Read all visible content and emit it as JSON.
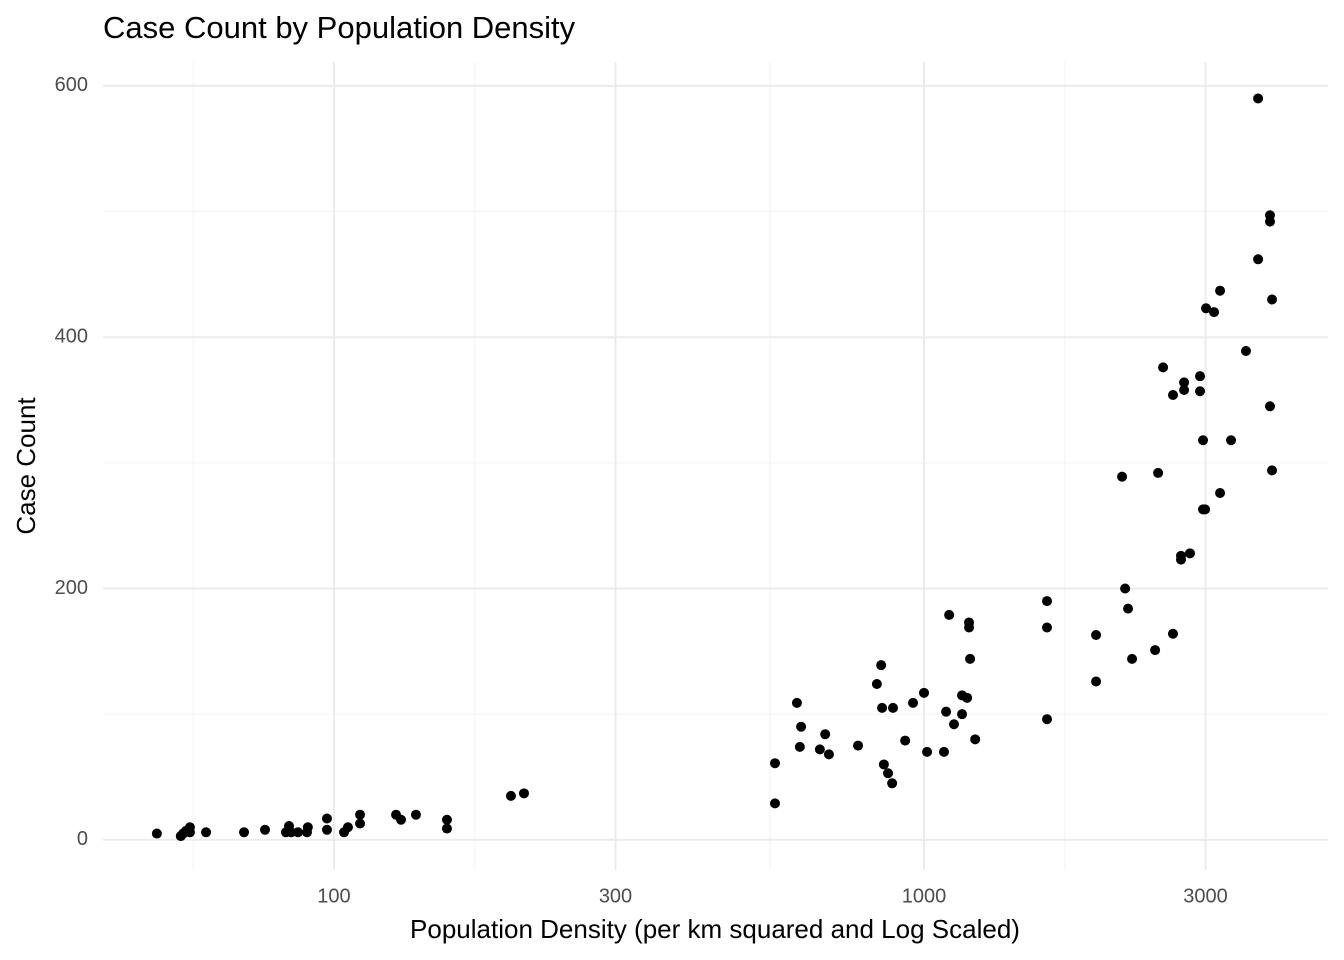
{
  "chart_data": {
    "type": "scatter",
    "title": "Case Count by Population Density",
    "x_label": "Population Density (per km squared and Log Scaled)",
    "y_label": "Case Count",
    "x_log": true,
    "grid": true,
    "color": "#000000",
    "xlim": [
      40.6,
      4838
    ],
    "ylim": [
      -24,
      619
    ],
    "xticks": [
      100,
      300,
      1000,
      3000
    ],
    "yticks": [
      0,
      200,
      400,
      600
    ],
    "x": [
      50.1,
      55.0,
      55.5,
      56.1,
      57.0,
      57.0,
      60.7,
      70.4,
      76.4,
      82.9,
      83.9,
      84.6,
      86.9,
      90.0,
      90.3,
      97.3,
      97.3,
      104,
      105.6,
      110.7,
      110.7,
      127.4,
      129.9,
      137.7,
      155.4,
      155.4,
      199.5,
      209.9,
      559,
      559,
      609,
      616,
      619,
      666,
      680,
      690,
      773,
      832,
      846,
      849,
      855,
      869,
      883,
      886,
      929,
      958,
      1000,
      1012,
      1081,
      1090,
      1103,
      1124,
      1160,
      1160,
      1183,
      1192,
      1192,
      1197,
      1221,
      1616,
      1616,
      1616,
      1957,
      1957,
      2166,
      2192,
      2217,
      2252,
      2464,
      2493,
      2542,
      2642,
      2642,
      2726,
      2726,
      2759,
      2759,
      2823,
      2936,
      2936,
      2971,
      2971,
      2995,
      3006,
      3101,
      3175,
      3175,
      3314,
      3513,
      3683,
      3683,
      3858,
      3858,
      3858,
      3889,
      3889
    ],
    "values": [
      5,
      3,
      5,
      7,
      10,
      6,
      6,
      6,
      8,
      6,
      11,
      6,
      6,
      6,
      10,
      17,
      8,
      6,
      10,
      20,
      13,
      20,
      16,
      20,
      16,
      9,
      35,
      37,
      61,
      29,
      109,
      74,
      90,
      72,
      84,
      68,
      75,
      124,
      139,
      105,
      60,
      53,
      45,
      105,
      79,
      109,
      117,
      70,
      70,
      102,
      179,
      92,
      115,
      100,
      113,
      173,
      169,
      144,
      80,
      190,
      169,
      96,
      163,
      126,
      289,
      200,
      184,
      144,
      151,
      292,
      376,
      164,
      354,
      226,
      223,
      364,
      358,
      228,
      369,
      357,
      318,
      263,
      263,
      423,
      420,
      437,
      276,
      318,
      389,
      462,
      590,
      345,
      497,
      492,
      430,
      294
    ]
  }
}
